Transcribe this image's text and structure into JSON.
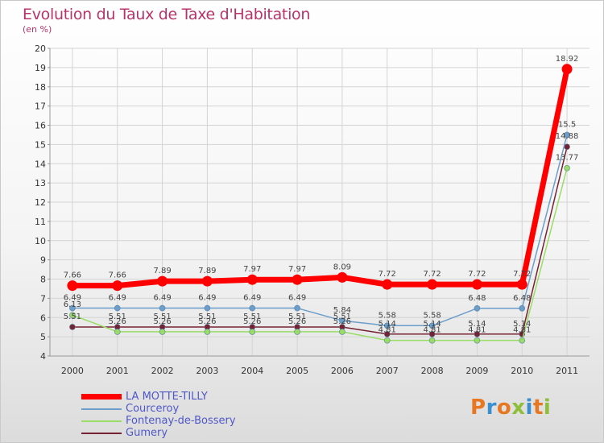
{
  "chart_data": {
    "type": "line",
    "title": "Evolution du Taux de Taxe d'Habitation",
    "subtitle": "(en %)",
    "x": [
      "2000",
      "2001",
      "2002",
      "2003",
      "2004",
      "2005",
      "2006",
      "2007",
      "2008",
      "2009",
      "2010",
      "2011"
    ],
    "ylim": [
      4,
      20
    ],
    "yticks": [
      4,
      5,
      6,
      7,
      8,
      9,
      10,
      11,
      12,
      13,
      14,
      15,
      16,
      17,
      18,
      19,
      20
    ],
    "grid": true,
    "legend_position": "bottom-left",
    "series": [
      {
        "name": "LA MOTTE-TILLY",
        "color": "#ff0000",
        "values": [
          7.66,
          7.66,
          7.89,
          7.89,
          7.97,
          7.97,
          8.09,
          7.72,
          7.72,
          7.72,
          7.72,
          18.92
        ],
        "labels": [
          "7.66",
          "7.66",
          "7.89",
          "7.89",
          "7.97",
          "7.97",
          "8.09",
          "7.72",
          "7.72",
          "7.72",
          "7.72",
          "18.92"
        ]
      },
      {
        "name": "Courceroy",
        "color": "#6c9ecc",
        "values": [
          6.49,
          6.49,
          6.49,
          6.49,
          6.49,
          6.49,
          5.84,
          5.58,
          5.58,
          6.48,
          6.48,
          15.5
        ],
        "labels": [
          "6.49",
          "6.49",
          "6.49",
          "6.49",
          "6.49",
          "6.49",
          "5.84",
          "5.58",
          "5.58",
          "6.48",
          "6.48",
          "15.5"
        ]
      },
      {
        "name": "Fontenay-de-Bossery",
        "color": "#99dd66",
        "values": [
          6.13,
          5.26,
          5.26,
          5.26,
          5.26,
          5.26,
          5.26,
          4.81,
          4.81,
          4.81,
          4.81,
          13.77
        ],
        "labels": [
          "6.13",
          "5.26",
          "5.26",
          "5.26",
          "5.26",
          "5.26",
          "5.26",
          "4.81",
          "4.81",
          "4.81",
          "4.81",
          "13.77"
        ]
      },
      {
        "name": "Gumery",
        "color": "#772233",
        "values": [
          5.51,
          5.51,
          5.51,
          5.51,
          5.51,
          5.51,
          5.51,
          5.14,
          5.14,
          5.14,
          5.14,
          14.88
        ],
        "labels": [
          "5.51",
          "5.51",
          "5.51",
          "5.51",
          "5.51",
          "5.51",
          "5.51",
          "5.14",
          "5.14",
          "5.14",
          "5.14",
          "14.88"
        ]
      }
    ]
  },
  "brand": {
    "name": "Proxiti",
    "colors": [
      "#e87722",
      "#3a8fd0",
      "#e87722",
      "#8fbf3a",
      "#3a8fd0",
      "#e87722",
      "#8fbf3a"
    ]
  }
}
